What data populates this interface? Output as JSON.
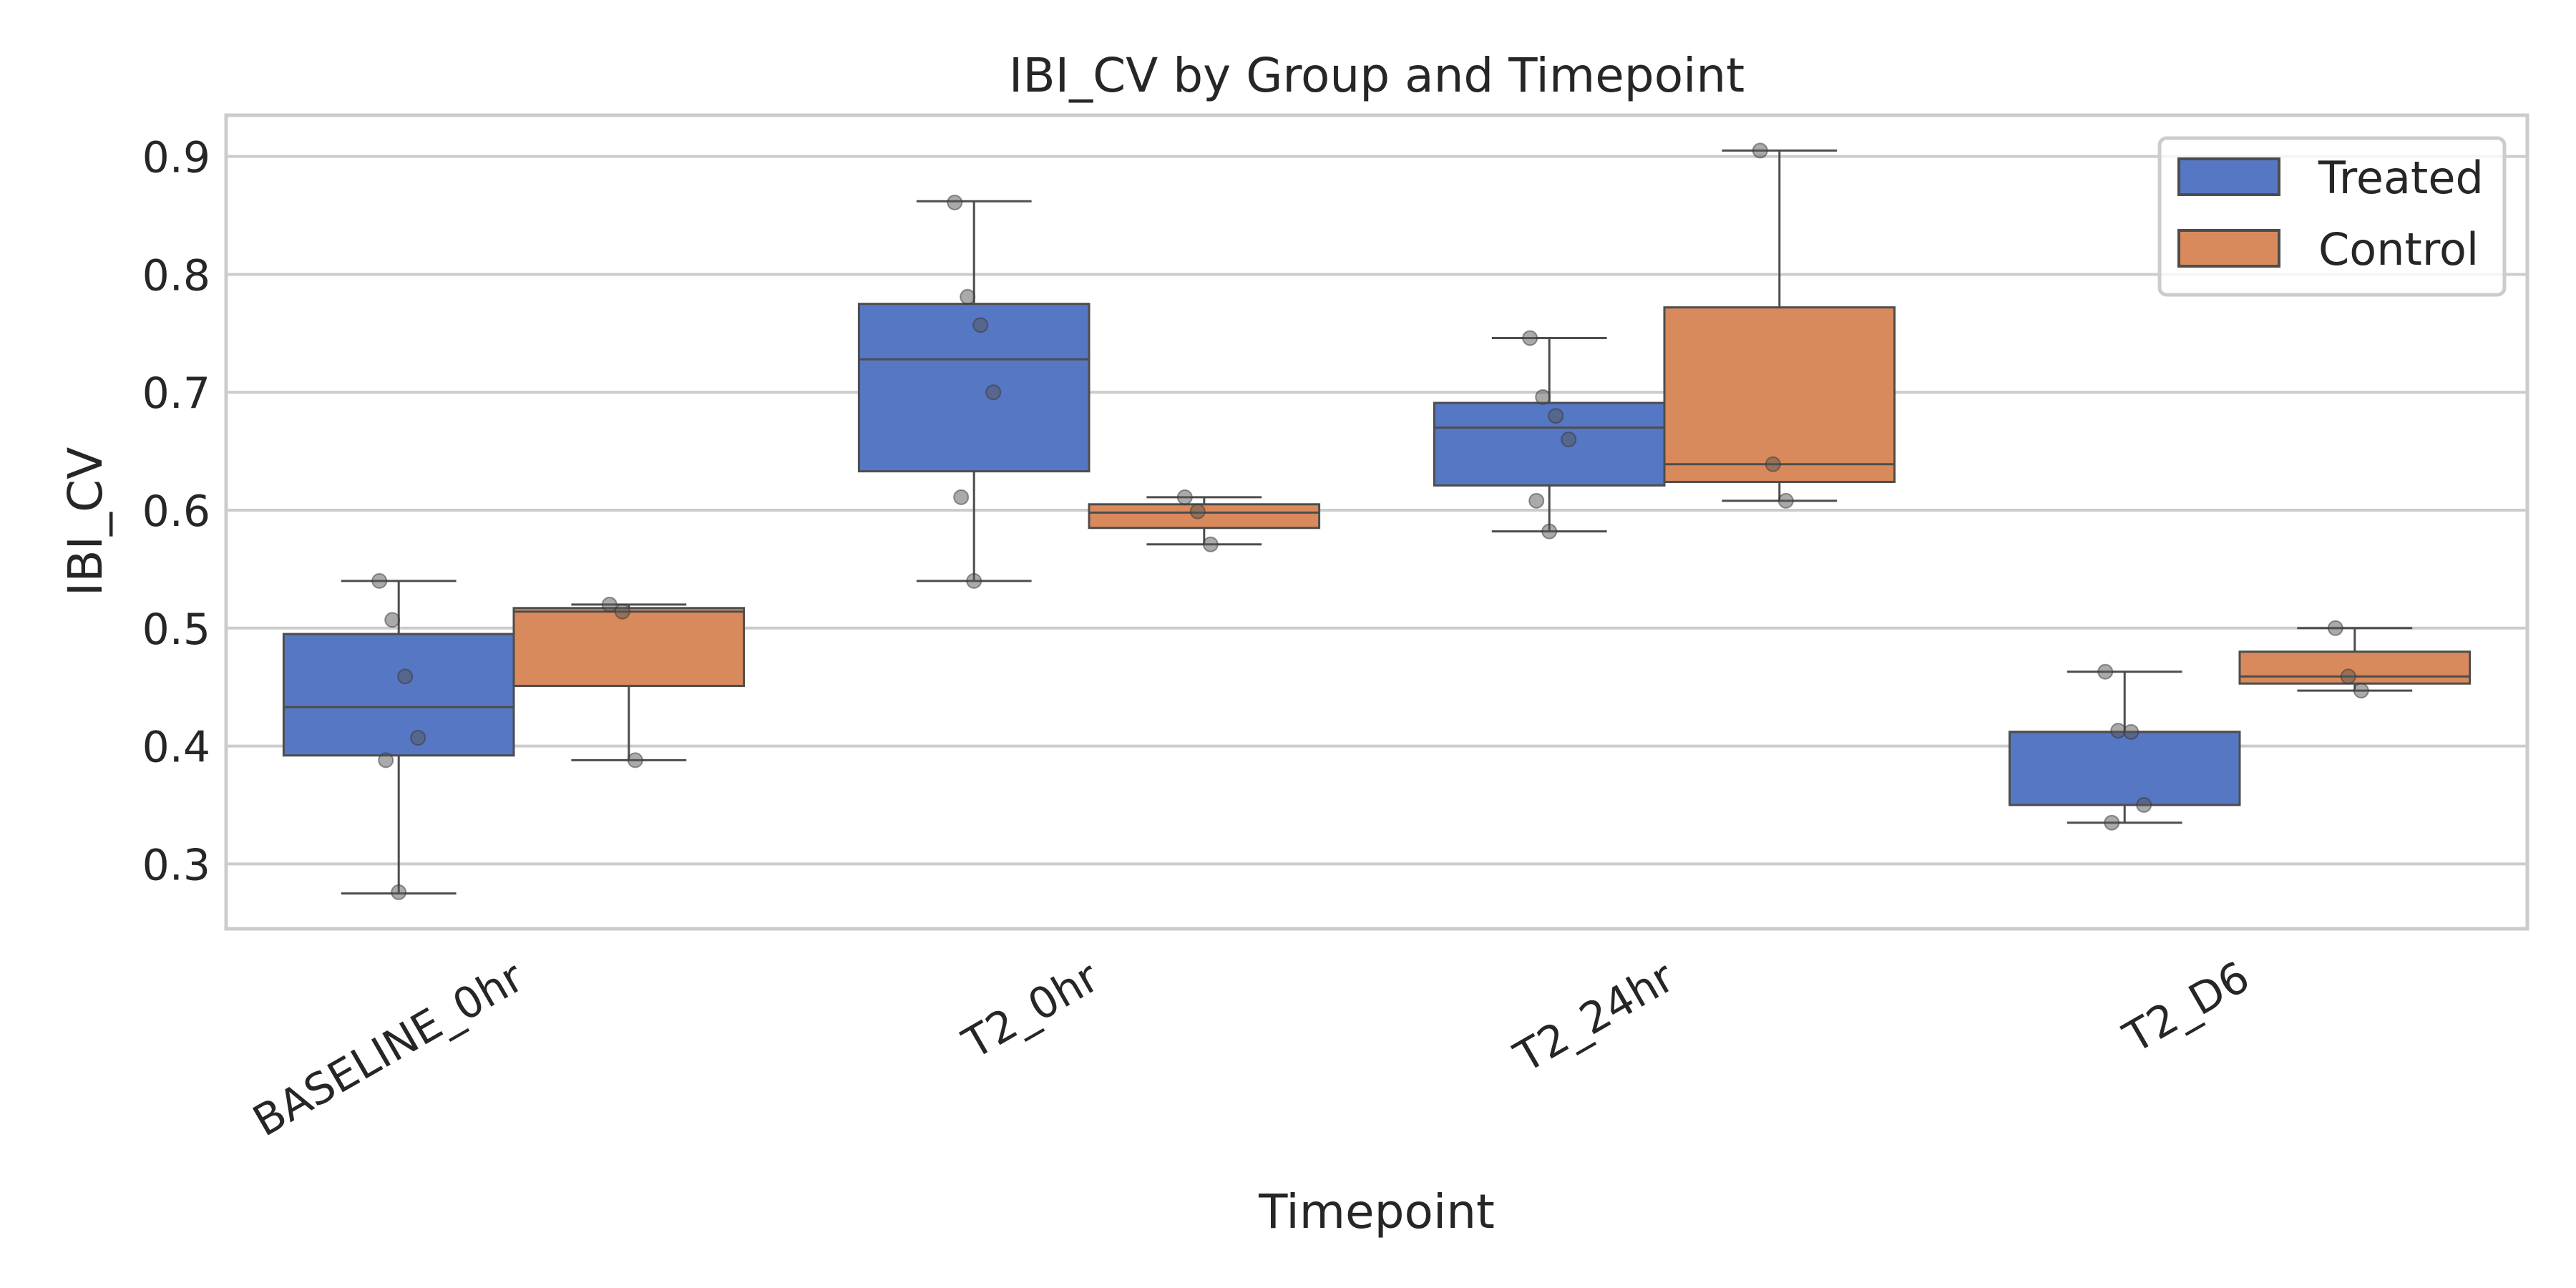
{
  "chart_data": {
    "type": "box",
    "title": "IBI_CV by Group and Timepoint",
    "xlabel": "Timepoint",
    "ylabel": "IBI_CV",
    "ylim": [
      0.245,
      0.935
    ],
    "yticks": [
      0.3,
      0.4,
      0.5,
      0.6,
      0.7,
      0.8,
      0.9
    ],
    "ytick_labels": [
      "0.3",
      "0.4",
      "0.5",
      "0.6",
      "0.7",
      "0.8",
      "0.9"
    ],
    "categories": [
      "BASELINE_0hr",
      "T2_0hr",
      "T2_24hr",
      "T2_D6"
    ],
    "grid": "horizontal",
    "legend_position": "top-right",
    "series": [
      {
        "name": "Treated",
        "color": "#5677c4",
        "boxes": [
          {
            "whisker_low": 0.275,
            "q1": 0.392,
            "median": 0.433,
            "q3": 0.495,
            "whisker_high": 0.54
          },
          {
            "whisker_low": 0.54,
            "q1": 0.633,
            "median": 0.728,
            "q3": 0.775,
            "whisker_high": 0.862
          },
          {
            "whisker_low": 0.582,
            "q1": 0.621,
            "median": 0.67,
            "q3": 0.691,
            "whisker_high": 0.746
          },
          {
            "whisker_low": 0.335,
            "q1": 0.35,
            "median": 0.412,
            "q3": 0.412,
            "whisker_high": 0.463
          }
        ],
        "points": [
          [
            0.54,
            0.507,
            0.459,
            0.407,
            0.388,
            0.276
          ],
          [
            0.861,
            0.781,
            0.757,
            0.7,
            0.611,
            0.54
          ],
          [
            0.746,
            0.696,
            0.68,
            0.66,
            0.608,
            0.582
          ],
          [
            0.463,
            0.413,
            0.412,
            0.35,
            0.335
          ]
        ]
      },
      {
        "name": "Control",
        "color": "#d98a5c",
        "boxes": [
          {
            "whisker_low": 0.388,
            "q1": 0.451,
            "median": 0.514,
            "q3": 0.517,
            "whisker_high": 0.52
          },
          {
            "whisker_low": 0.571,
            "q1": 0.585,
            "median": 0.598,
            "q3": 0.605,
            "whisker_high": 0.611
          },
          {
            "whisker_low": 0.608,
            "q1": 0.624,
            "median": 0.639,
            "q3": 0.772,
            "whisker_high": 0.905
          },
          {
            "whisker_low": 0.447,
            "q1": 0.453,
            "median": 0.459,
            "q3": 0.48,
            "whisker_high": 0.5
          }
        ],
        "points": [
          [
            0.52,
            0.514,
            0.388
          ],
          [
            0.611,
            0.599,
            0.571
          ],
          [
            0.905,
            0.639,
            0.608
          ],
          [
            0.5,
            0.459,
            0.447
          ]
        ]
      }
    ]
  }
}
